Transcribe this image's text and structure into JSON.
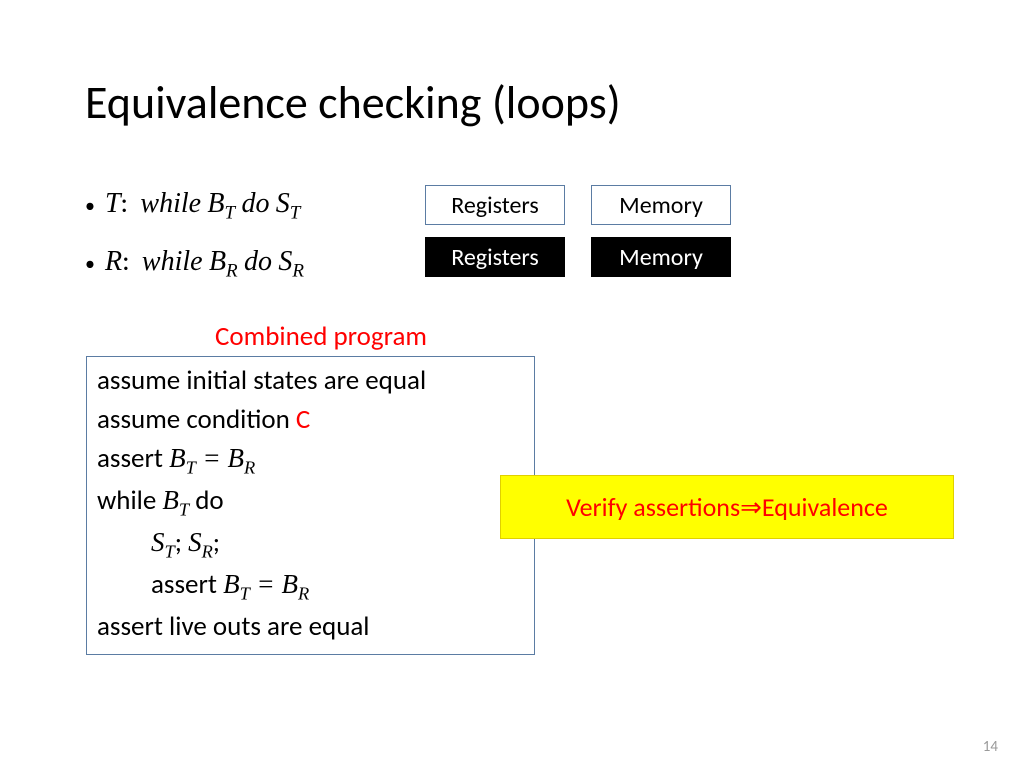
{
  "title": "Equivalence checking (loops)",
  "bullets": {
    "t": {
      "label": "T",
      "kw_while": "while",
      "cond": "B",
      "cond_sub": "T",
      "kw_do": "do",
      "body": "S",
      "body_sub": "T"
    },
    "r": {
      "label": "R",
      "kw_while": "while",
      "cond": "B",
      "cond_sub": "R",
      "kw_do": "do",
      "body": "S",
      "body_sub": "R"
    }
  },
  "state_boxes": {
    "row1": {
      "left": "Registers",
      "right": "Memory"
    },
    "row2": {
      "left": "Registers",
      "right": "Memory"
    },
    "colors": {
      "light_bg": "#ffffff",
      "light_fg": "#000000",
      "light_border": "#5b7ca3",
      "dark_bg": "#000000",
      "dark_fg": "#ffffff"
    }
  },
  "combined": {
    "header": "Combined program",
    "line1": "assume initial states are equal",
    "line2_pre": "assume condition ",
    "line2_c": "C",
    "line3_pre": "assert ",
    "line3_B": "B",
    "line3_T": "T",
    "line3_eq": " = ",
    "line3_B2": "B",
    "line3_R": "R",
    "line4_pre": "while ",
    "line4_B": "B",
    "line4_T": "T",
    "line4_do": " do",
    "line5_S1": "S",
    "line5_T": "T",
    "line5_semi1": "; ",
    "line5_S2": "S",
    "line5_R": "R",
    "line5_semi2": ";",
    "line6_pre": "assert ",
    "line6_B": "B",
    "line6_T": "T",
    "line6_eq": " = ",
    "line6_B2": "B",
    "line6_R": "R",
    "line7": "assert live outs are equal",
    "border_color": "#5b7ca3"
  },
  "verify": {
    "text_pre": "Verify assertions ",
    "arrow": "⇒",
    "text_post": " Equivalence",
    "bg": "#ffff00",
    "fg": "#ff0000"
  },
  "page_number": "14",
  "colors": {
    "title": "#000000",
    "red": "#ff0000",
    "page_num": "#9a9a9a",
    "background": "#ffffff"
  }
}
